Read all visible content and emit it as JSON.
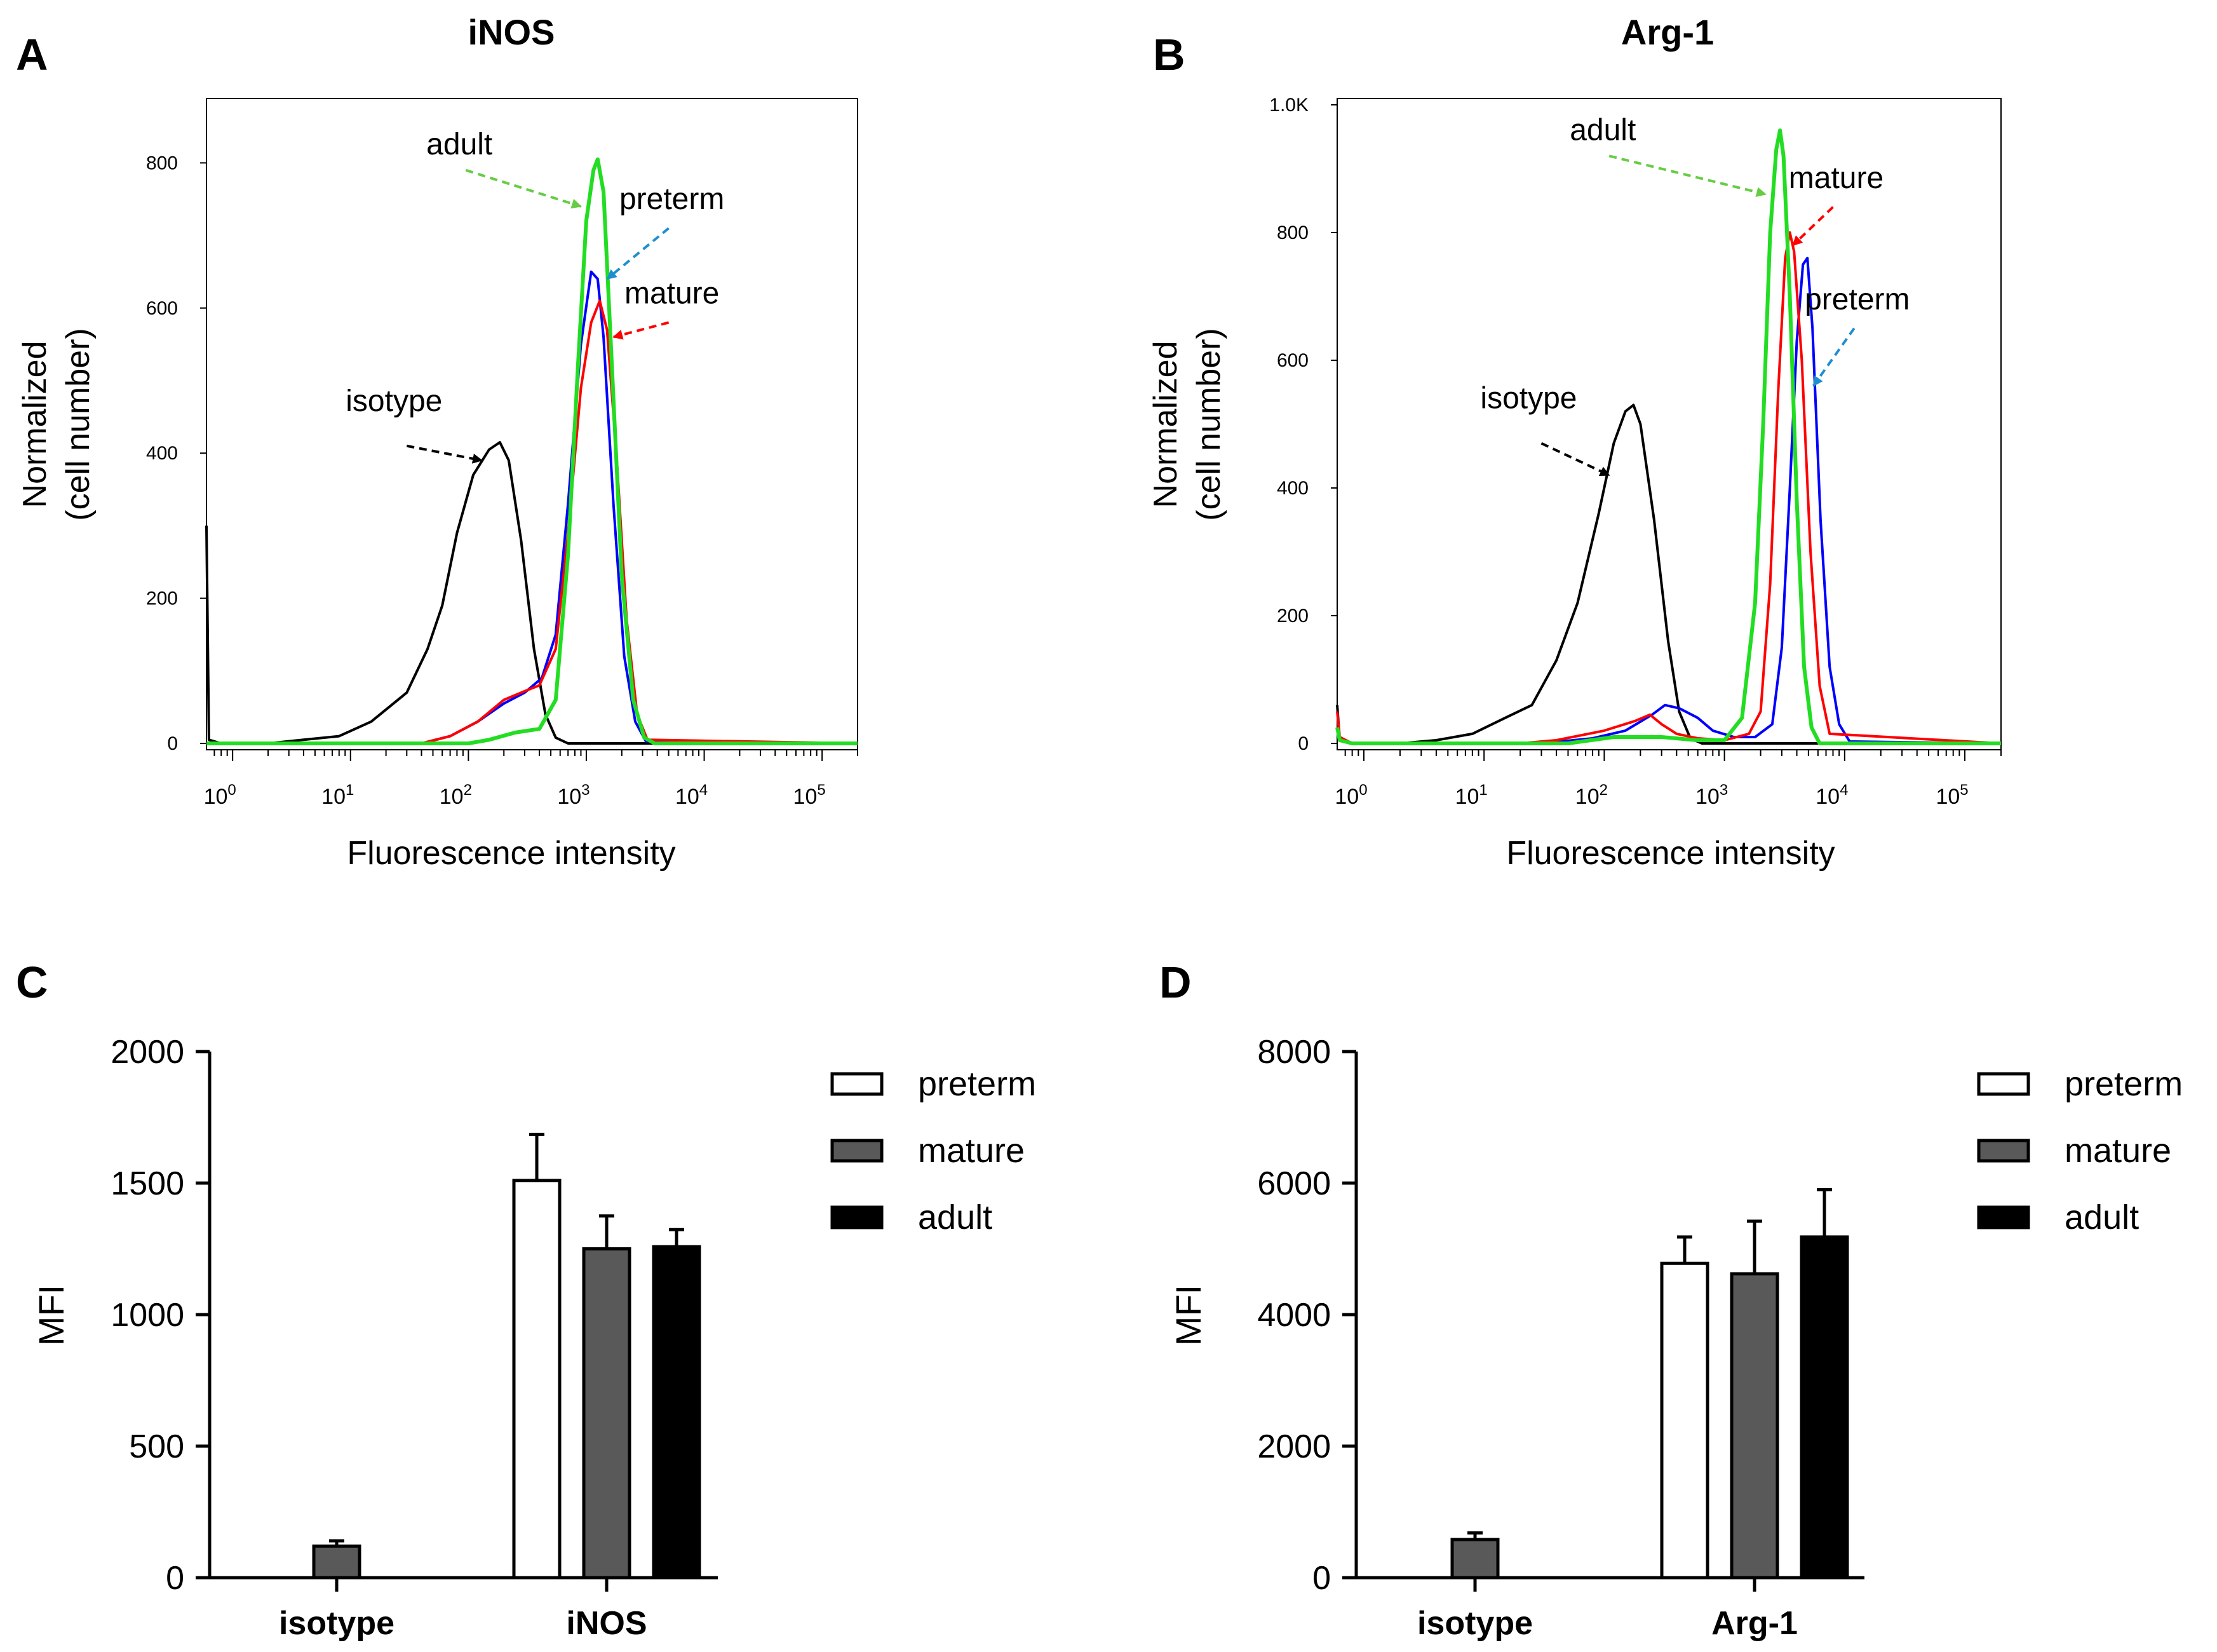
{
  "colors": {
    "isotype": "#000000",
    "preterm": "#0000ff",
    "mature": "#ff0000",
    "adult": "#22dd22",
    "preterm_arrow": "#1f8fcf",
    "adult_arrow": "#66cc44",
    "bar_preterm": "#ffffff",
    "bar_mature": "#595959",
    "bar_adult": "#000000"
  },
  "chart_data": [
    {
      "panel": "A",
      "type": "line",
      "title": "iNOS",
      "xlabel": "Fluorescence intensity",
      "ylabel_line1": "Normalized",
      "ylabel_line2": "(cell number)",
      "xscale": "log",
      "xlim": [
        0.6,
        200000
      ],
      "ylim": [
        0,
        880
      ],
      "yticks": [
        {
          "v": 0,
          "label": "0"
        },
        {
          "v": 200,
          "label": "200"
        },
        {
          "v": 400,
          "label": "400"
        },
        {
          "v": 600,
          "label": "600"
        },
        {
          "v": 800,
          "label": "800"
        }
      ],
      "xticks": [
        {
          "v": 1,
          "label": "0"
        },
        {
          "v": 10,
          "label": "1"
        },
        {
          "v": 100,
          "label": "2"
        },
        {
          "v": 1000,
          "label": "3"
        },
        {
          "v": 10000,
          "label": "4"
        },
        {
          "v": 100000,
          "label": "5"
        }
      ],
      "series": [
        {
          "name": "isotype",
          "color_key": "isotype",
          "points": [
            [
              0.6,
              300
            ],
            [
              0.63,
              5
            ],
            [
              0.8,
              0
            ],
            [
              2,
              0
            ],
            [
              4,
              5
            ],
            [
              8,
              10
            ],
            [
              15,
              30
            ],
            [
              30,
              70
            ],
            [
              45,
              130
            ],
            [
              60,
              190
            ],
            [
              80,
              290
            ],
            [
              110,
              370
            ],
            [
              150,
              405
            ],
            [
              185,
              415
            ],
            [
              220,
              390
            ],
            [
              280,
              280
            ],
            [
              360,
              130
            ],
            [
              450,
              40
            ],
            [
              550,
              8
            ],
            [
              700,
              0
            ],
            [
              200000,
              0
            ]
          ]
        },
        {
          "name": "preterm",
          "color_key": "preterm",
          "points": [
            [
              40,
              0
            ],
            [
              70,
              10
            ],
            [
              120,
              30
            ],
            [
              200,
              55
            ],
            [
              300,
              70
            ],
            [
              420,
              90
            ],
            [
              550,
              150
            ],
            [
              700,
              330
            ],
            [
              900,
              550
            ],
            [
              1100,
              650
            ],
            [
              1250,
              640
            ],
            [
              1400,
              560
            ],
            [
              1700,
              330
            ],
            [
              2100,
              120
            ],
            [
              2600,
              30
            ],
            [
              3200,
              3
            ],
            [
              200000,
              0
            ]
          ]
        },
        {
          "name": "mature",
          "color_key": "mature",
          "points": [
            [
              40,
              0
            ],
            [
              70,
              10
            ],
            [
              120,
              30
            ],
            [
              200,
              60
            ],
            [
              300,
              72
            ],
            [
              400,
              80
            ],
            [
              550,
              130
            ],
            [
              700,
              290
            ],
            [
              900,
              490
            ],
            [
              1100,
              580
            ],
            [
              1300,
              610
            ],
            [
              1500,
              570
            ],
            [
              1800,
              400
            ],
            [
              2200,
              170
            ],
            [
              2700,
              40
            ],
            [
              3300,
              5
            ],
            [
              200000,
              0
            ]
          ]
        },
        {
          "name": "adult",
          "color_key": "adult",
          "points": [
            [
              0.6,
              0
            ],
            [
              100,
              0
            ],
            [
              150,
              5
            ],
            [
              250,
              15
            ],
            [
              400,
              20
            ],
            [
              550,
              60
            ],
            [
              700,
              260
            ],
            [
              850,
              520
            ],
            [
              1000,
              720
            ],
            [
              1150,
              790
            ],
            [
              1250,
              805
            ],
            [
              1400,
              760
            ],
            [
              1650,
              520
            ],
            [
              2000,
              230
            ],
            [
              2500,
              60
            ],
            [
              3100,
              8
            ],
            [
              3800,
              0
            ],
            [
              200000,
              0
            ]
          ]
        }
      ],
      "annotations": [
        {
          "text": "adult",
          "color_key": "adult_arrow",
          "from": [
            95,
            790
          ],
          "to": [
            900,
            740
          ]
        },
        {
          "text": "preterm",
          "color_key": "preterm_arrow",
          "from": [
            5000,
            710
          ],
          "to": [
            1500,
            640
          ]
        },
        {
          "text": "mature",
          "color_key": "mature",
          "from": [
            5000,
            580
          ],
          "to": [
            1700,
            560
          ]
        },
        {
          "text": "isotype",
          "color_key": "isotype",
          "from": [
            30,
            410
          ],
          "to": [
            130,
            390
          ]
        }
      ]
    },
    {
      "panel": "B",
      "type": "line",
      "title": "Arg-1",
      "xlabel": "Fluorescence intensity",
      "ylabel_line1": "Normalized",
      "ylabel_line2": "(cell number)",
      "xscale": "log",
      "xlim": [
        0.6,
        200000
      ],
      "ylim": [
        0,
        1000
      ],
      "yticks": [
        {
          "v": 0,
          "label": "0"
        },
        {
          "v": 200,
          "label": "200"
        },
        {
          "v": 400,
          "label": "400"
        },
        {
          "v": 600,
          "label": "600"
        },
        {
          "v": 800,
          "label": "800"
        },
        {
          "v": 1000,
          "label": "1.0K"
        }
      ],
      "xticks": [
        {
          "v": 1,
          "label": "0"
        },
        {
          "v": 10,
          "label": "1"
        },
        {
          "v": 100,
          "label": "2"
        },
        {
          "v": 1000,
          "label": "3"
        },
        {
          "v": 10000,
          "label": "4"
        },
        {
          "v": 100000,
          "label": "5"
        }
      ],
      "series": [
        {
          "name": "isotype",
          "color_key": "isotype",
          "points": [
            [
              0.6,
              60
            ],
            [
              0.63,
              5
            ],
            [
              0.8,
              0
            ],
            [
              2,
              0
            ],
            [
              4,
              5
            ],
            [
              8,
              15
            ],
            [
              15,
              40
            ],
            [
              25,
              60
            ],
            [
              40,
              130
            ],
            [
              60,
              220
            ],
            [
              90,
              360
            ],
            [
              120,
              470
            ],
            [
              150,
              520
            ],
            [
              175,
              530
            ],
            [
              200,
              500
            ],
            [
              260,
              350
            ],
            [
              340,
              160
            ],
            [
              420,
              50
            ],
            [
              520,
              8
            ],
            [
              650,
              0
            ],
            [
              200000,
              0
            ]
          ]
        },
        {
          "name": "preterm",
          "color_key": "preterm",
          "points": [
            [
              30,
              0
            ],
            [
              80,
              8
            ],
            [
              150,
              20
            ],
            [
              250,
              45
            ],
            [
              320,
              60
            ],
            [
              420,
              55
            ],
            [
              600,
              40
            ],
            [
              800,
              20
            ],
            [
              1200,
              10
            ],
            [
              1800,
              10
            ],
            [
              2500,
              30
            ],
            [
              3000,
              150
            ],
            [
              3500,
              400
            ],
            [
              4000,
              630
            ],
            [
              4500,
              750
            ],
            [
              4900,
              760
            ],
            [
              5400,
              650
            ],
            [
              6300,
              350
            ],
            [
              7500,
              120
            ],
            [
              9000,
              30
            ],
            [
              11000,
              3
            ],
            [
              200000,
              0
            ]
          ]
        },
        {
          "name": "mature",
          "color_key": "mature",
          "points": [
            [
              0.6,
              50
            ],
            [
              0.63,
              10
            ],
            [
              0.8,
              0
            ],
            [
              20,
              0
            ],
            [
              40,
              5
            ],
            [
              100,
              20
            ],
            [
              180,
              35
            ],
            [
              240,
              45
            ],
            [
              300,
              30
            ],
            [
              400,
              15
            ],
            [
              600,
              8
            ],
            [
              1000,
              5
            ],
            [
              1600,
              15
            ],
            [
              2000,
              50
            ],
            [
              2400,
              250
            ],
            [
              2800,
              550
            ],
            [
              3200,
              760
            ],
            [
              3500,
              800
            ],
            [
              3800,
              770
            ],
            [
              4400,
              600
            ],
            [
              5200,
              300
            ],
            [
              6200,
              90
            ],
            [
              7500,
              15
            ],
            [
              200000,
              0
            ]
          ]
        },
        {
          "name": "adult",
          "color_key": "adult",
          "points": [
            [
              0.6,
              25
            ],
            [
              0.63,
              5
            ],
            [
              0.8,
              0
            ],
            [
              50,
              0
            ],
            [
              120,
              10
            ],
            [
              300,
              10
            ],
            [
              600,
              5
            ],
            [
              1000,
              5
            ],
            [
              1400,
              40
            ],
            [
              1800,
              220
            ],
            [
              2100,
              500
            ],
            [
              2400,
              800
            ],
            [
              2700,
              930
            ],
            [
              2900,
              960
            ],
            [
              3100,
              920
            ],
            [
              3500,
              700
            ],
            [
              4000,
              380
            ],
            [
              4600,
              120
            ],
            [
              5300,
              25
            ],
            [
              6200,
              0
            ],
            [
              200000,
              0
            ]
          ]
        }
      ],
      "annotations": [
        {
          "text": "adult",
          "color_key": "adult_arrow",
          "from": [
            110,
            920
          ],
          "to": [
            2200,
            860
          ]
        },
        {
          "text": "mature",
          "color_key": "mature",
          "from": [
            8000,
            840
          ],
          "to": [
            3700,
            780
          ]
        },
        {
          "text": "preterm",
          "color_key": "preterm_arrow",
          "from": [
            12000,
            650
          ],
          "to": [
            5500,
            560
          ]
        },
        {
          "text": "isotype",
          "color_key": "isotype",
          "from": [
            30,
            470
          ],
          "to": [
            110,
            420
          ]
        }
      ]
    },
    {
      "panel": "C",
      "type": "bar",
      "ylabel": "MFI",
      "ylim": [
        0,
        2000
      ],
      "yticks": [
        "0",
        "500",
        "1000",
        "1500",
        "2000"
      ],
      "ytick_values": [
        0,
        500,
        1000,
        1500,
        2000
      ],
      "categories": [
        "isotype",
        "iNOS"
      ],
      "legend": [
        "preterm",
        "mature",
        "adult"
      ],
      "bars": [
        {
          "category": 0,
          "series": "mature",
          "color_key": "bar_mature",
          "value": 120,
          "error": 20
        },
        {
          "category": 1,
          "series": "preterm",
          "color_key": "bar_preterm",
          "value": 1510,
          "error": 175
        },
        {
          "category": 1,
          "series": "mature",
          "color_key": "bar_mature",
          "value": 1250,
          "error": 125
        },
        {
          "category": 1,
          "series": "adult",
          "color_key": "bar_adult",
          "value": 1258,
          "error": 65
        }
      ]
    },
    {
      "panel": "D",
      "type": "bar",
      "ylabel": "MFI",
      "ylim": [
        0,
        8000
      ],
      "yticks": [
        "0",
        "2000",
        "4000",
        "6000",
        "8000"
      ],
      "ytick_values": [
        0,
        2000,
        4000,
        6000,
        8000
      ],
      "categories": [
        "isotype",
        "Arg-1"
      ],
      "legend": [
        "preterm",
        "mature",
        "adult"
      ],
      "bars": [
        {
          "category": 0,
          "series": "mature",
          "color_key": "bar_mature",
          "value": 580,
          "error": 100
        },
        {
          "category": 1,
          "series": "preterm",
          "color_key": "bar_preterm",
          "value": 4780,
          "error": 400
        },
        {
          "category": 1,
          "series": "mature",
          "color_key": "bar_mature",
          "value": 4620,
          "error": 800
        },
        {
          "category": 1,
          "series": "adult",
          "color_key": "bar_adult",
          "value": 5180,
          "error": 720
        }
      ]
    }
  ]
}
